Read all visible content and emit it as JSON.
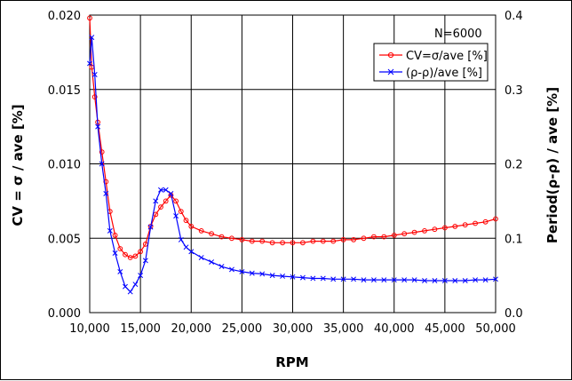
{
  "chart_data": {
    "type": "line",
    "title": "",
    "annotation": "N=6000",
    "xlabel": "RPM",
    "ylabel": "CV = σ / ave [%]",
    "y2label": "Period(ρ-ρ) / ave [%]",
    "xlim": [
      10000,
      50000
    ],
    "ylim": [
      0,
      0.02
    ],
    "y2lim": [
      0,
      0.4
    ],
    "grid": true,
    "legend_position": "top-right",
    "x_ticks": [
      10000,
      15000,
      20000,
      25000,
      30000,
      35000,
      40000,
      45000,
      50000
    ],
    "x_tick_labels": [
      "10,000",
      "15,000",
      "20,000",
      "25,000",
      "30,000",
      "35,000",
      "40,000",
      "45,000",
      "50,000"
    ],
    "y_ticks": [
      0,
      0.005,
      0.01,
      0.015,
      0.02
    ],
    "y_tick_labels": [
      "0.000",
      "0.005",
      "0.010",
      "0.015",
      "0.020"
    ],
    "y2_ticks": [
      0,
      0.1,
      0.2,
      0.3,
      0.4
    ],
    "y2_tick_labels": [
      "0.0",
      "0.1",
      "0.2",
      "0.3",
      "0.4"
    ],
    "series": [
      {
        "name": "CV=σ/ave [%]",
        "color": "#ff0000",
        "marker": "circle",
        "axis": "left",
        "x": [
          10000,
          10200,
          10500,
          10800,
          11200,
          11600,
          12000,
          12500,
          13000,
          13500,
          14000,
          14500,
          15000,
          15500,
          16000,
          16500,
          17000,
          17500,
          18000,
          18500,
          19000,
          19500,
          20000,
          21000,
          22000,
          23000,
          24000,
          25000,
          26000,
          27000,
          28000,
          29000,
          30000,
          31000,
          32000,
          33000,
          34000,
          35000,
          36000,
          37000,
          38000,
          39000,
          40000,
          41000,
          42000,
          43000,
          44000,
          45000,
          46000,
          47000,
          48000,
          49000,
          50000
        ],
        "values": [
          0.0198,
          0.0165,
          0.0145,
          0.0128,
          0.0108,
          0.0088,
          0.0068,
          0.0052,
          0.0043,
          0.0039,
          0.0037,
          0.0038,
          0.0041,
          0.0046,
          0.0058,
          0.0066,
          0.0071,
          0.0075,
          0.0079,
          0.0075,
          0.0068,
          0.0062,
          0.0058,
          0.0055,
          0.0053,
          0.0051,
          0.005,
          0.0049,
          0.0048,
          0.0048,
          0.0047,
          0.0047,
          0.0047,
          0.0047,
          0.0048,
          0.0048,
          0.0048,
          0.0049,
          0.0049,
          0.005,
          0.0051,
          0.0051,
          0.0052,
          0.0053,
          0.0054,
          0.0055,
          0.0056,
          0.0057,
          0.0058,
          0.0059,
          0.006,
          0.0061,
          0.0063
        ]
      },
      {
        "name": "(ρ-ρ)/ave [%]",
        "color": "#0000ff",
        "marker": "x",
        "axis": "right",
        "x": [
          10000,
          10200,
          10500,
          10800,
          11200,
          11600,
          12000,
          12500,
          13000,
          13500,
          14000,
          14500,
          15000,
          15500,
          16000,
          16500,
          17000,
          17500,
          18000,
          18500,
          19000,
          19500,
          20000,
          21000,
          22000,
          23000,
          24000,
          25000,
          26000,
          27000,
          28000,
          29000,
          30000,
          31000,
          32000,
          33000,
          34000,
          35000,
          36000,
          37000,
          38000,
          39000,
          40000,
          41000,
          42000,
          43000,
          44000,
          45000,
          46000,
          47000,
          48000,
          49000,
          50000
        ],
        "values": [
          0.335,
          0.37,
          0.32,
          0.25,
          0.2,
          0.16,
          0.11,
          0.08,
          0.055,
          0.035,
          0.028,
          0.038,
          0.05,
          0.07,
          0.115,
          0.15,
          0.165,
          0.165,
          0.16,
          0.13,
          0.098,
          0.088,
          0.082,
          0.074,
          0.068,
          0.062,
          0.058,
          0.055,
          0.053,
          0.052,
          0.05,
          0.049,
          0.048,
          0.047,
          0.046,
          0.046,
          0.045,
          0.045,
          0.045,
          0.044,
          0.044,
          0.044,
          0.044,
          0.044,
          0.044,
          0.043,
          0.043,
          0.043,
          0.043,
          0.043,
          0.044,
          0.044,
          0.045
        ]
      }
    ]
  }
}
